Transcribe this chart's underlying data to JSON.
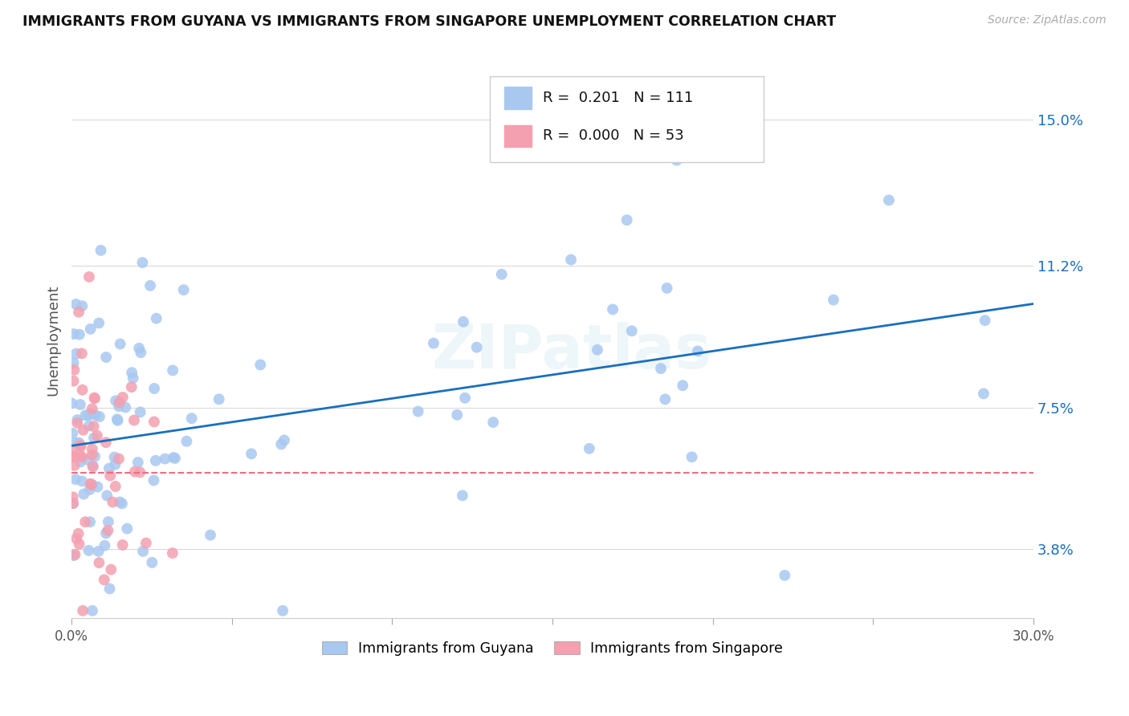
{
  "title": "IMMIGRANTS FROM GUYANA VS IMMIGRANTS FROM SINGAPORE UNEMPLOYMENT CORRELATION CHART",
  "source": "Source: ZipAtlas.com",
  "ylabel": "Unemployment",
  "yticks": [
    3.8,
    7.5,
    11.2,
    15.0
  ],
  "ytick_labels": [
    "3.8%",
    "7.5%",
    "11.2%",
    "15.0%"
  ],
  "xmin": 0.0,
  "xmax": 30.0,
  "ymin": 2.0,
  "ymax": 16.5,
  "legend_r_blue": "0.201",
  "legend_n_blue": "111",
  "legend_r_pink": "0.000",
  "legend_n_pink": "53",
  "legend_label_blue": "Immigrants from Guyana",
  "legend_label_pink": "Immigrants from Singapore",
  "blue_color": "#a8c8f0",
  "pink_color": "#f4a0b0",
  "line_blue_color": "#1a6fbd",
  "line_pink_color": "#e87080",
  "blue_r_color": "#1a6fbd",
  "pink_r_color": "#1a6fbd",
  "watermark": "ZIPatlas",
  "blue_line_x0": 0.0,
  "blue_line_x1": 30.0,
  "blue_line_y0": 6.5,
  "blue_line_y1": 10.2,
  "pink_line_y": 5.8
}
